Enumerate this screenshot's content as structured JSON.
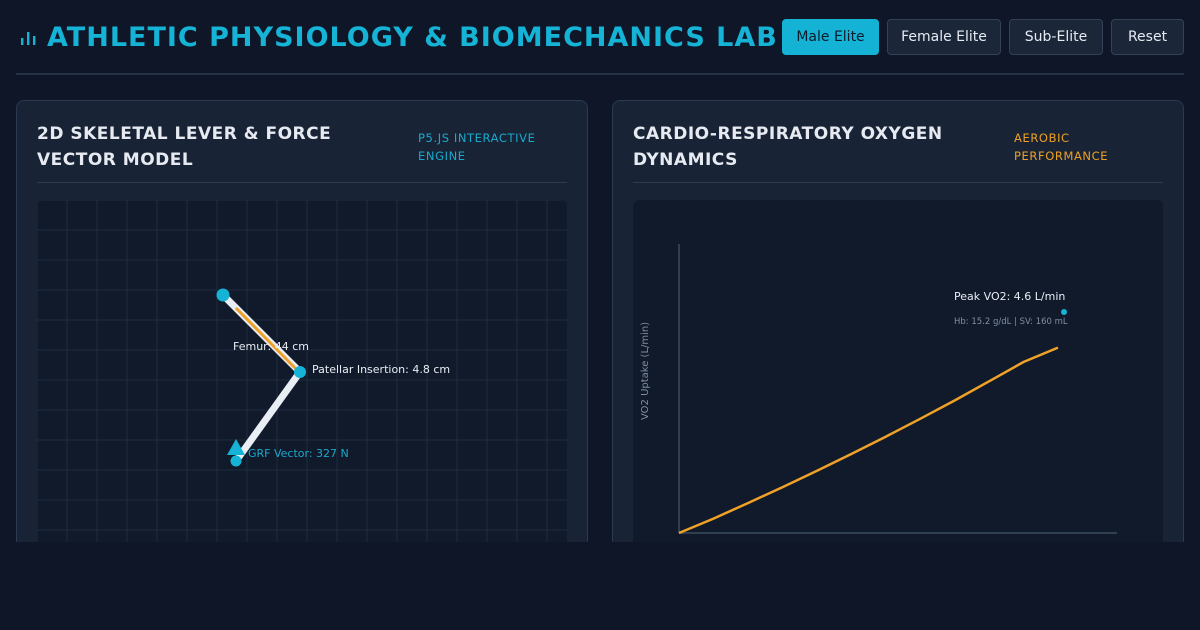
{
  "header": {
    "title": "ATHLETIC PHYSIOLOGY & BIOMECHANICS LAB",
    "buttons": {
      "male": "Male Elite",
      "female": "Female Elite",
      "sub": "Sub-Elite",
      "reset": "Reset"
    },
    "active_button": "Male Elite"
  },
  "skeletal_panel": {
    "title": "2D SKELETAL LEVER & FORCE VECTOR MODEL",
    "tag": "P5.JS INTERACTIVE ENGINE",
    "labels": {
      "femur": "Femur: 44 cm",
      "patellar": "Patellar Insertion: 4.8 cm",
      "grf": "GRF Vector: 327 N"
    }
  },
  "oxygen_panel": {
    "title": "CARDIO-RESPIRATORY OXYGEN DYNAMICS",
    "tag": "AEROBIC PERFORMANCE"
  },
  "chart_data": {
    "type": "line",
    "title": "",
    "xlabel": "",
    "ylabel": "VO2 Uptake (L/min)",
    "grid": false,
    "series": [
      {
        "values": [
          0.0,
          0.3,
          0.62,
          0.95,
          1.29,
          1.64,
          2.0,
          2.37,
          2.75,
          3.15,
          3.55,
          3.85
        ]
      }
    ],
    "ylim": [
      0,
      6
    ],
    "annotations": {
      "peak": "Peak VO2: 4.6 L/min",
      "sub": "Hb: 15.2 g/dL | SV: 160 mL"
    }
  },
  "colors": {
    "accent": "#15b3d6",
    "orange": "#f0a127",
    "bone": "#e9edf4"
  }
}
